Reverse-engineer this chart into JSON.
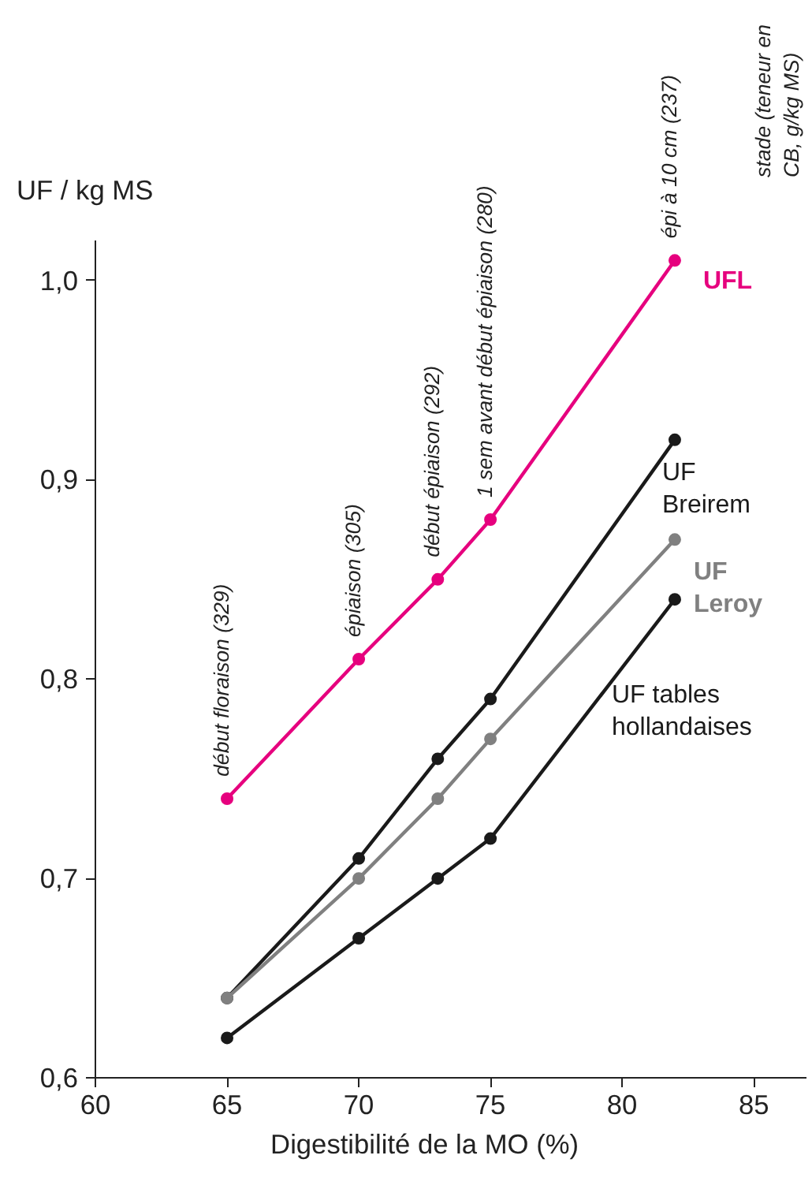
{
  "chart_data": {
    "type": "line",
    "xlabel": "Digestibilité de la MO (%)",
    "ylabel": "UF / kg MS",
    "xlim": [
      60,
      87
    ],
    "xticks": [
      60,
      65,
      70,
      75,
      80,
      85
    ],
    "ylim": [
      0.6,
      1.02
    ],
    "yticks": [
      {
        "value": 0.6,
        "label": "0,6"
      },
      {
        "value": 0.7,
        "label": "0,7"
      },
      {
        "value": 0.8,
        "label": "0,8"
      },
      {
        "value": 0.9,
        "label": "0,9"
      },
      {
        "value": 1.0,
        "label": "1,0"
      }
    ],
    "x": [
      65,
      70,
      73,
      75,
      82
    ],
    "grid": false,
    "marker": "circle",
    "line_style": "solid",
    "series": [
      {
        "name": "UFL",
        "color": "#e6007e",
        "values": [
          0.74,
          0.81,
          0.85,
          0.88,
          1.01
        ]
      },
      {
        "name": "UF\nBreirem",
        "color": "#1a1a1a",
        "values": [
          0.64,
          0.71,
          0.76,
          0.79,
          0.92
        ]
      },
      {
        "name": "UF\nLeroy",
        "color": "#808080",
        "values": [
          0.64,
          0.7,
          0.74,
          0.77,
          0.87
        ]
      },
      {
        "name": "UF tables\nhollandaises",
        "color": "#1a1a1a",
        "values": [
          0.62,
          0.67,
          0.7,
          0.72,
          0.84
        ]
      }
    ],
    "annotations": [
      {
        "text": "début floraison (329)",
        "x": 65,
        "y": 0.74
      },
      {
        "text": "épiaison (305)",
        "x": 70,
        "y": 0.81
      },
      {
        "text": "début épiaison (292)",
        "x": 73,
        "y": 0.85
      },
      {
        "text": "1 sem avant début épiaison (280)",
        "x": 75,
        "y": 0.88
      },
      {
        "text": "épi à 10 cm (237)",
        "x": 82,
        "y": 1.01
      },
      "stade (teneur en\nCB, g/kg MS)"
    ]
  }
}
